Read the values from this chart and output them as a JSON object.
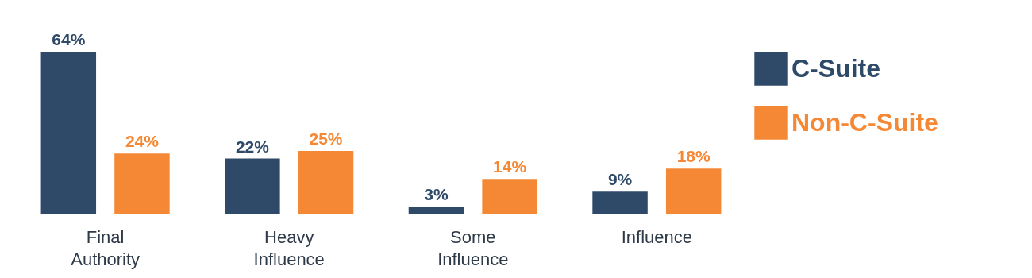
{
  "chart_data": {
    "type": "bar",
    "categories": [
      "Final Authority",
      "Heavy Influence",
      "Some Influence",
      "Influence"
    ],
    "series": [
      {
        "name": "C-Suite",
        "color": "#2e4a68",
        "values": [
          64,
          22,
          3,
          9
        ],
        "value_labels": [
          "64%",
          "22%",
          "3%",
          "9%"
        ]
      },
      {
        "name": "Non-C-Suite",
        "color": "#f58835",
        "values": [
          24,
          25,
          14,
          18
        ],
        "value_labels": [
          "24%",
          "25%",
          "14%",
          "18%"
        ]
      }
    ],
    "legend": "top right",
    "tick_labels": "x"
  }
}
